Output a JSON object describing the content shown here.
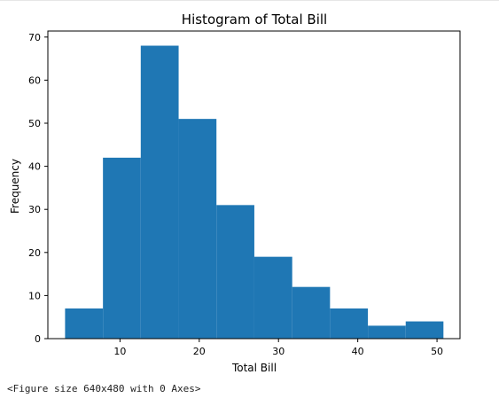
{
  "chart_data": {
    "type": "bar",
    "title": "Histogram of Total Bill",
    "xlabel": "Total Bill",
    "ylabel": "Frequency",
    "bin_edges": [
      3.07,
      7.85,
      12.62,
      17.4,
      22.17,
      26.95,
      31.73,
      36.5,
      41.28,
      46.05,
      50.81
    ],
    "values": [
      7,
      42,
      68,
      51,
      31,
      19,
      12,
      7,
      3,
      4
    ],
    "xlim": [
      0.9,
      52.9
    ],
    "ylim": [
      0,
      71.4
    ],
    "xticks": [
      "10",
      "20",
      "30",
      "40",
      "50"
    ],
    "yticks": [
      "0",
      "10",
      "20",
      "30",
      "40",
      "50",
      "60",
      "70"
    ],
    "grid": false,
    "bar_color": "#1f77b4"
  },
  "output": {
    "figure_text": "<Figure size 640x480 with 0 Axes>"
  }
}
